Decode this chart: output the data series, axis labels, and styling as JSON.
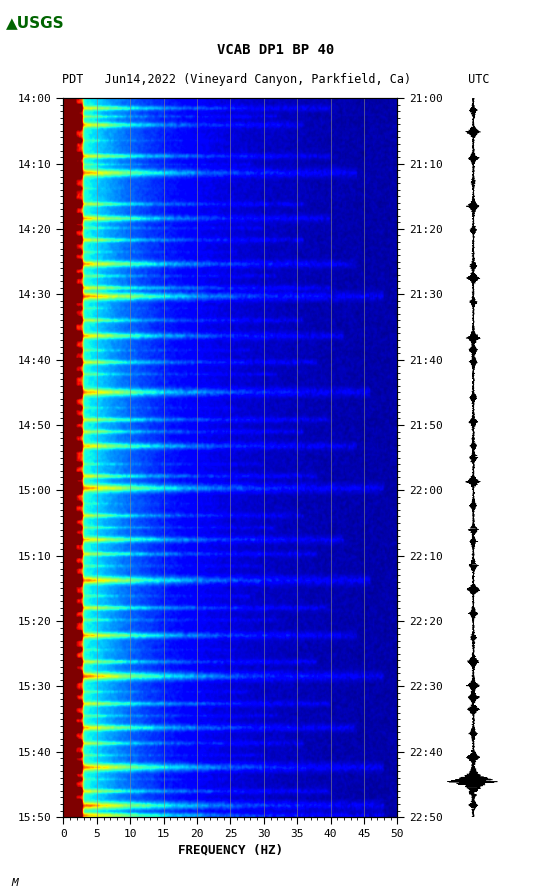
{
  "title_line1": "VCAB DP1 BP 40",
  "title_line2": "PDT   Jun14,2022 (Vineyard Canyon, Parkfield, Ca)        UTC",
  "xlabel": "FREQUENCY (HZ)",
  "freq_min": 0,
  "freq_max": 50,
  "freq_ticks": [
    0,
    5,
    10,
    15,
    20,
    25,
    30,
    35,
    40,
    45,
    50
  ],
  "pdt_times": [
    "14:00",
    "14:10",
    "14:20",
    "14:30",
    "14:40",
    "14:50",
    "15:00",
    "15:10",
    "15:20",
    "15:30",
    "15:40",
    "15:50"
  ],
  "utc_times": [
    "21:00",
    "21:10",
    "21:20",
    "21:30",
    "21:40",
    "21:50",
    "22:00",
    "22:10",
    "22:20",
    "22:30",
    "22:40",
    "22:50"
  ],
  "bg_color": "white",
  "spectrogram_cmap": "jet",
  "vertical_line_color": "#888888",
  "vertical_line_alpha": 0.7,
  "fig_width": 5.52,
  "fig_height": 8.93,
  "dpi": 100
}
